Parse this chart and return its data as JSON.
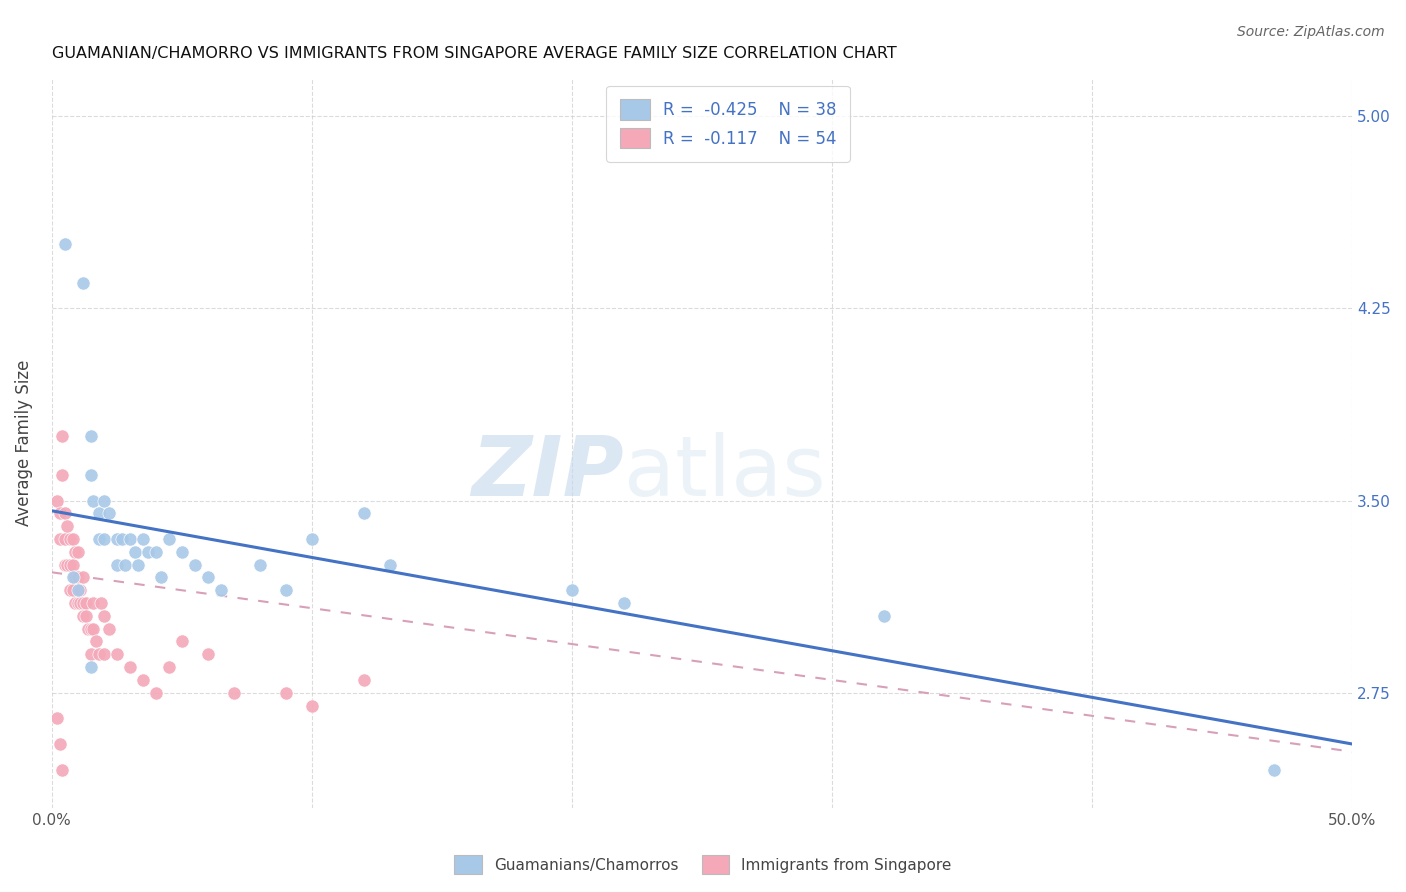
{
  "title": "GUAMANIAN/CHAMORRO VS IMMIGRANTS FROM SINGAPORE AVERAGE FAMILY SIZE CORRELATION CHART",
  "source": "Source: ZipAtlas.com",
  "ylabel": "Average Family Size",
  "xlim": [
    0.0,
    0.5
  ],
  "ylim": [
    2.3,
    5.15
  ],
  "yticks": [
    2.75,
    3.5,
    4.25,
    5.0
  ],
  "xticks": [
    0.0,
    0.1,
    0.2,
    0.3,
    0.4,
    0.5
  ],
  "xticklabels": [
    "0.0%",
    "",
    "",
    "",
    "",
    "50.0%"
  ],
  "yticklabels_right": [
    "2.75",
    "3.50",
    "4.25",
    "5.00"
  ],
  "color_blue": "#a8c8e8",
  "color_pink": "#f4a8b8",
  "line_blue": "#4472c4",
  "line_pink": "#d8a0b8",
  "legend_r_blue": "-0.425",
  "legend_n_blue": "38",
  "legend_r_pink": "-0.117",
  "legend_n_pink": "54",
  "watermark_zip": "ZIP",
  "watermark_atlas": "atlas",
  "grid_color": "#cccccc",
  "background_color": "#ffffff",
  "right_tick_color": "#4472c4",
  "blue_scatter_x": [
    0.005,
    0.012,
    0.015,
    0.015,
    0.016,
    0.018,
    0.018,
    0.02,
    0.02,
    0.022,
    0.025,
    0.025,
    0.027,
    0.028,
    0.03,
    0.032,
    0.033,
    0.035,
    0.037,
    0.04,
    0.042,
    0.045,
    0.05,
    0.055,
    0.06,
    0.065,
    0.08,
    0.09,
    0.1,
    0.12,
    0.13,
    0.2,
    0.22,
    0.32,
    0.47,
    0.008,
    0.01,
    0.015
  ],
  "blue_scatter_y": [
    4.5,
    4.35,
    3.75,
    3.6,
    3.5,
    3.45,
    3.35,
    3.5,
    3.35,
    3.45,
    3.35,
    3.25,
    3.35,
    3.25,
    3.35,
    3.3,
    3.25,
    3.35,
    3.3,
    3.3,
    3.2,
    3.35,
    3.3,
    3.25,
    3.2,
    3.15,
    3.25,
    3.15,
    3.35,
    3.45,
    3.25,
    3.15,
    3.1,
    3.05,
    2.45,
    3.2,
    3.15,
    2.85
  ],
  "pink_scatter_x": [
    0.002,
    0.003,
    0.003,
    0.004,
    0.004,
    0.005,
    0.005,
    0.005,
    0.006,
    0.006,
    0.007,
    0.007,
    0.007,
    0.008,
    0.008,
    0.008,
    0.009,
    0.009,
    0.009,
    0.01,
    0.01,
    0.01,
    0.011,
    0.011,
    0.012,
    0.012,
    0.012,
    0.013,
    0.013,
    0.014,
    0.015,
    0.015,
    0.016,
    0.016,
    0.017,
    0.018,
    0.019,
    0.02,
    0.02,
    0.022,
    0.025,
    0.03,
    0.035,
    0.04,
    0.045,
    0.05,
    0.06,
    0.07,
    0.09,
    0.1,
    0.12,
    0.002,
    0.003,
    0.004
  ],
  "pink_scatter_y": [
    3.5,
    3.45,
    3.35,
    3.75,
    3.6,
    3.45,
    3.35,
    3.25,
    3.4,
    3.25,
    3.35,
    3.25,
    3.15,
    3.35,
    3.25,
    3.15,
    3.3,
    3.2,
    3.1,
    3.3,
    3.2,
    3.1,
    3.15,
    3.1,
    3.2,
    3.1,
    3.05,
    3.1,
    3.05,
    3.0,
    3.0,
    2.9,
    3.1,
    3.0,
    2.95,
    2.9,
    3.1,
    3.05,
    2.9,
    3.0,
    2.9,
    2.85,
    2.8,
    2.75,
    2.85,
    2.95,
    2.9,
    2.75,
    2.75,
    2.7,
    2.8,
    2.65,
    2.55,
    2.45
  ],
  "blue_line_x0": 0.0,
  "blue_line_y0": 3.46,
  "blue_line_x1": 0.5,
  "blue_line_y1": 2.55,
  "pink_line_x0": 0.0,
  "pink_line_y0": 3.22,
  "pink_line_x1": 0.5,
  "pink_line_y1": 2.52
}
